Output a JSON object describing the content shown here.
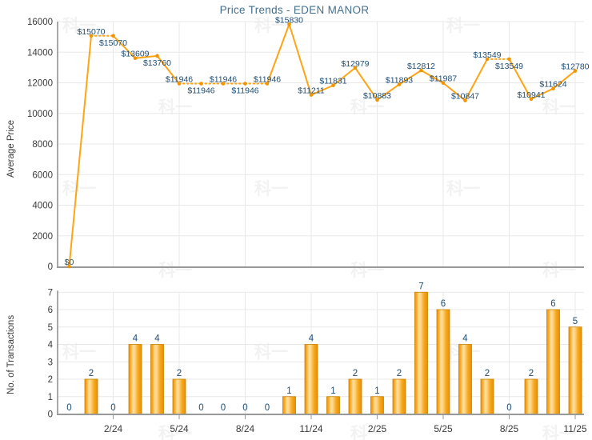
{
  "title": "Price Trends - EDEN MANOR",
  "watermark": {
    "text": "科一",
    "color": "rgba(0,0,0,0.05)"
  },
  "colors": {
    "series": "#FFA415",
    "marker": "#F29400",
    "bar_edge": "#C98200",
    "bar_grad": [
      "#EE9005",
      "#FBB33C",
      "#FFDF9E",
      "#FFD685",
      "#F7A81F",
      "#E88F00"
    ],
    "point_label": "#1F4D73",
    "title": "#44708D",
    "tick_text": "#3A3A3A",
    "grid": "#E8E8E8",
    "spine": "#A8A8A8",
    "axis_line": "#999999"
  },
  "chart_data": [
    {
      "type": "line",
      "title": "Price Trends - EDEN MANOR",
      "ylabel": "Average Price",
      "ylim": [
        0,
        16000
      ],
      "yticks": [
        0,
        2000,
        4000,
        6000,
        8000,
        10000,
        12000,
        14000,
        16000
      ],
      "grid": true,
      "legend": "none",
      "values": [
        0,
        15070,
        15070,
        13609,
        13760,
        11946,
        11946,
        11946,
        11946,
        11946,
        15830,
        11211,
        11831,
        12979,
        10883,
        11893,
        12812,
        11987,
        10847,
        13549,
        13549,
        10941,
        11624,
        12780
      ],
      "point_labels": [
        "$0",
        "$15070",
        "$15070",
        "$13609",
        "$13760",
        "$11946",
        "$11946",
        "$11946",
        "$11946",
        "$11946",
        "$15830",
        "$11211",
        "$11831",
        "$12979",
        "$10883",
        "$11893",
        "$12812",
        "$11987",
        "$10847",
        "$13549",
        "$13549",
        "$10941",
        "$11624",
        "$12780"
      ],
      "label_below_indices": [
        2,
        4,
        6,
        8,
        20
      ],
      "dotted_segment_targets": [
        2,
        6,
        7,
        8,
        9,
        20
      ],
      "x_tick_labels": [
        "2/24",
        "5/24",
        "8/24",
        "11/24",
        "2/25",
        "5/25",
        "8/25",
        "11/25"
      ],
      "x_tick_indices": [
        2,
        5,
        8,
        11,
        14,
        17,
        20,
        23
      ]
    },
    {
      "type": "bar",
      "ylabel": "No. of Transactions",
      "ylim": [
        0,
        7
      ],
      "yticks": [
        0,
        1,
        2,
        3,
        4,
        5,
        6,
        7
      ],
      "grid": true,
      "legend": "none",
      "values": [
        0,
        2,
        0,
        4,
        4,
        2,
        0,
        0,
        0,
        0,
        1,
        4,
        1,
        2,
        1,
        2,
        7,
        6,
        4,
        2,
        0,
        2,
        6,
        5
      ],
      "x_tick_labels": [
        "2/24",
        "5/24",
        "8/24",
        "11/24",
        "2/25",
        "5/25",
        "8/25",
        "11/25"
      ],
      "x_tick_indices": [
        2,
        5,
        8,
        11,
        14,
        17,
        20,
        23
      ]
    }
  ]
}
